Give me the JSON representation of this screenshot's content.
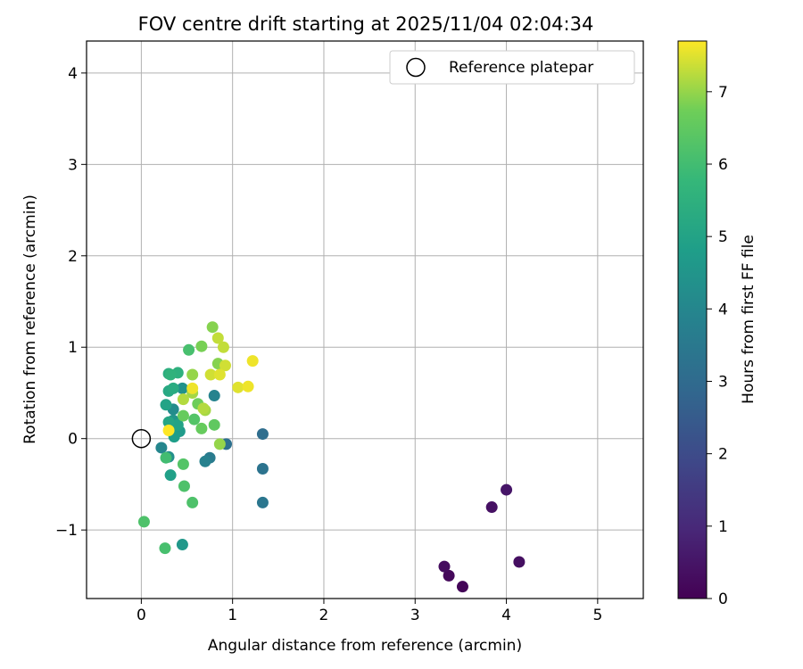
{
  "chart_data": {
    "type": "scatter",
    "title": "FOV centre drift starting at 2025/11/04 02:04:34",
    "xlabel": "Angular distance from reference (arcmin)",
    "ylabel": "Rotation from reference (arcmin)",
    "xlim": [
      -0.6,
      5.5
    ],
    "ylim": [
      -1.75,
      4.35
    ],
    "x_ticks": [
      0,
      1,
      2,
      3,
      4,
      5
    ],
    "x_tick_labels": [
      "0",
      "1",
      "2",
      "3",
      "4",
      "5"
    ],
    "y_ticks": [
      -1,
      0,
      1,
      2,
      3,
      4
    ],
    "y_tick_labels": [
      "−1",
      "0",
      "1",
      "2",
      "3",
      "4"
    ],
    "grid": true,
    "legend": {
      "position": "top-right",
      "label": "Reference platepar"
    },
    "reference_point": {
      "x": 0,
      "y": 0
    },
    "colorbar": {
      "label": "Hours from first FF file",
      "range": [
        0,
        7.7
      ],
      "ticks": [
        0,
        1,
        2,
        3,
        4,
        5,
        6,
        7
      ],
      "tick_labels": [
        "0",
        "1",
        "2",
        "3",
        "4",
        "5",
        "6",
        "7"
      ],
      "colormap": "viridis"
    },
    "points": [
      {
        "x": 3.52,
        "y": -1.62,
        "hours": 0.1
      },
      {
        "x": 3.37,
        "y": -1.5,
        "hours": 0.2
      },
      {
        "x": 3.32,
        "y": -1.4,
        "hours": 0.3
      },
      {
        "x": 4.14,
        "y": -1.35,
        "hours": 0.35
      },
      {
        "x": 3.84,
        "y": -0.75,
        "hours": 0.4
      },
      {
        "x": 4.0,
        "y": -0.56,
        "hours": 0.5
      },
      {
        "x": 1.33,
        "y": 0.05,
        "hours": 3.1
      },
      {
        "x": 0.93,
        "y": -0.06,
        "hours": 3.2
      },
      {
        "x": 1.33,
        "y": -0.33,
        "hours": 3.3
      },
      {
        "x": 1.33,
        "y": -0.7,
        "hours": 3.4
      },
      {
        "x": 0.75,
        "y": -0.21,
        "hours": 3.6
      },
      {
        "x": 0.7,
        "y": -0.25,
        "hours": 3.8
      },
      {
        "x": 0.8,
        "y": 0.47,
        "hours": 3.9
      },
      {
        "x": 0.22,
        "y": -0.1,
        "hours": 4.0
      },
      {
        "x": 0.35,
        "y": 0.32,
        "hours": 4.2
      },
      {
        "x": 0.3,
        "y": -0.2,
        "hours": 4.3
      },
      {
        "x": 0.45,
        "y": 0.55,
        "hours": 4.4
      },
      {
        "x": 0.35,
        "y": 0.2,
        "hours": 4.5
      },
      {
        "x": 0.45,
        "y": -1.16,
        "hours": 4.6
      },
      {
        "x": 0.42,
        "y": 0.08,
        "hours": 4.7
      },
      {
        "x": 0.36,
        "y": 0.02,
        "hours": 4.8
      },
      {
        "x": 0.32,
        "y": -0.4,
        "hours": 4.9
      },
      {
        "x": 0.27,
        "y": 0.37,
        "hours": 5.0
      },
      {
        "x": 0.4,
        "y": 0.15,
        "hours": 5.0
      },
      {
        "x": 0.3,
        "y": 0.18,
        "hours": 5.1
      },
      {
        "x": 0.3,
        "y": 0.52,
        "hours": 5.2
      },
      {
        "x": 0.35,
        "y": 0.55,
        "hours": 5.3
      },
      {
        "x": 0.3,
        "y": 0.71,
        "hours": 5.4
      },
      {
        "x": 0.4,
        "y": 0.72,
        "hours": 5.5
      },
      {
        "x": 0.32,
        "y": 0.7,
        "hours": 5.6
      },
      {
        "x": 0.27,
        "y": -0.21,
        "hours": 6.0
      },
      {
        "x": 0.26,
        "y": -1.2,
        "hours": 6.1
      },
      {
        "x": 0.03,
        "y": -0.91,
        "hours": 6.2
      },
      {
        "x": 0.52,
        "y": 0.97,
        "hours": 6.1
      },
      {
        "x": 0.47,
        "y": -0.52,
        "hours": 6.2
      },
      {
        "x": 0.56,
        "y": -0.7,
        "hours": 6.2
      },
      {
        "x": 0.46,
        "y": -0.28,
        "hours": 6.3
      },
      {
        "x": 0.58,
        "y": 0.21,
        "hours": 6.3
      },
      {
        "x": 0.8,
        "y": 0.15,
        "hours": 6.5
      },
      {
        "x": 0.66,
        "y": 0.11,
        "hours": 6.6
      },
      {
        "x": 0.46,
        "y": 0.25,
        "hours": 6.6
      },
      {
        "x": 0.62,
        "y": 0.38,
        "hours": 6.7
      },
      {
        "x": 0.66,
        "y": 1.01,
        "hours": 6.8
      },
      {
        "x": 0.78,
        "y": 1.22,
        "hours": 6.9
      },
      {
        "x": 0.84,
        "y": 0.82,
        "hours": 6.9
      },
      {
        "x": 0.56,
        "y": 0.7,
        "hours": 7.0
      },
      {
        "x": 0.86,
        "y": -0.06,
        "hours": 7.0
      },
      {
        "x": 0.7,
        "y": 0.31,
        "hours": 7.1
      },
      {
        "x": 0.56,
        "y": 0.5,
        "hours": 7.1
      },
      {
        "x": 0.46,
        "y": 0.43,
        "hours": 7.2
      },
      {
        "x": 0.68,
        "y": 0.33,
        "hours": 7.2
      },
      {
        "x": 0.84,
        "y": 1.1,
        "hours": 7.3
      },
      {
        "x": 0.9,
        "y": 1.0,
        "hours": 7.3
      },
      {
        "x": 0.92,
        "y": 0.8,
        "hours": 7.4
      },
      {
        "x": 0.76,
        "y": 0.7,
        "hours": 7.4
      },
      {
        "x": 0.86,
        "y": 0.7,
        "hours": 7.5
      },
      {
        "x": 1.06,
        "y": 0.56,
        "hours": 7.5
      },
      {
        "x": 1.17,
        "y": 0.57,
        "hours": 7.6
      },
      {
        "x": 1.22,
        "y": 0.85,
        "hours": 7.6
      },
      {
        "x": 0.56,
        "y": 0.55,
        "hours": 7.6
      },
      {
        "x": 0.3,
        "y": 0.09,
        "hours": 7.7
      }
    ]
  }
}
